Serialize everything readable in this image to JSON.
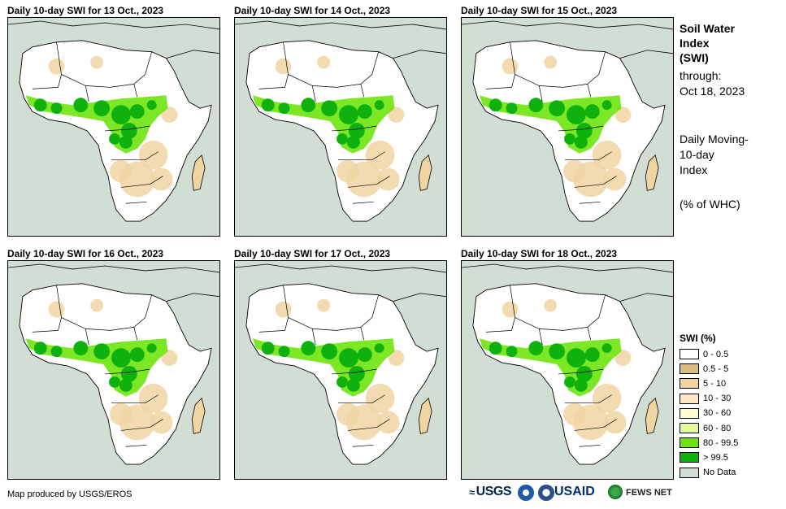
{
  "panels": [
    {
      "title": "Daily 10-day SWI for 13 Oct., 2023"
    },
    {
      "title": "Daily 10-day SWI for 14 Oct., 2023"
    },
    {
      "title": "Daily 10-day SWI for 15 Oct., 2023"
    },
    {
      "title": "Daily 10-day SWI for 16 Oct., 2023"
    },
    {
      "title": "Daily 10-day SWI for 17 Oct., 2023"
    },
    {
      "title": "Daily 10-day SWI for 18 Oct., 2023"
    }
  ],
  "sidebar": {
    "title_line1": "Soil Water",
    "title_line2": "Index",
    "title_line3": "(SWI)",
    "through_label": "through:",
    "through_date": "Oct 18, 2023",
    "desc_line1": "Daily Moving-",
    "desc_line2": "10-day",
    "desc_line3": "Index",
    "units": "(% of WHC)"
  },
  "legend": {
    "title": "SWI (%)",
    "items": [
      {
        "label": "0 - 0.5",
        "color": "#ffffff"
      },
      {
        "label": "0.5 - 5",
        "color": "#d8bc82"
      },
      {
        "label": "5 - 10",
        "color": "#f0d5a3"
      },
      {
        "label": "10 - 30",
        "color": "#fbe6c6"
      },
      {
        "label": "30 - 60",
        "color": "#fdfcd2"
      },
      {
        "label": "60 - 80",
        "color": "#e4fb9a"
      },
      {
        "label": "80 - 99.5",
        "color": "#6ee40c"
      },
      {
        "label": "> 99.5",
        "color": "#0fb10f"
      },
      {
        "label": "No Data",
        "color": "#d2ded4"
      }
    ]
  },
  "footer": {
    "credit": "Map produced by USGS/EROS",
    "logos": {
      "usgs": "USGS",
      "usaid": "USAID",
      "fews": "FEWS NET"
    }
  },
  "colors": {
    "background": "#d2ded4",
    "dry_land": "#ffffff",
    "tan_land": "#f0d5a3",
    "wet_green": "#0fb10f",
    "light_green": "#6ee40c"
  }
}
